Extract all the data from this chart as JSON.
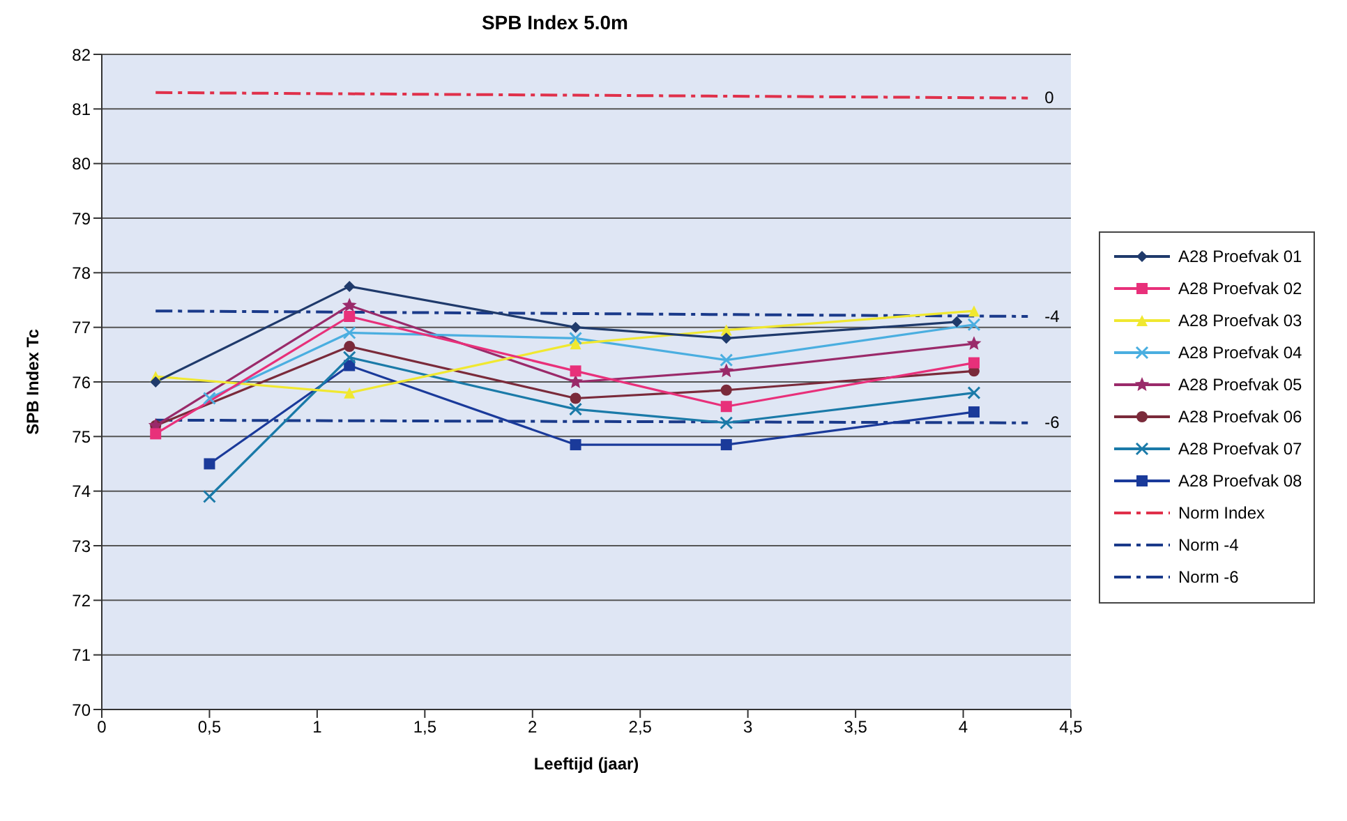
{
  "chart_data": {
    "type": "line",
    "title": "SPB Index 5.0m",
    "xlabel": "Leeftijd (jaar)",
    "ylabel": "SPB Index Tc",
    "xlim": [
      0,
      4.5
    ],
    "xticks": [
      0,
      {
        "value": 0.5,
        "label": "0,5"
      },
      1,
      {
        "value": 1.5,
        "label": "1,5"
      },
      2,
      {
        "value": 2.5,
        "label": "2,5"
      },
      3,
      {
        "value": 3.5,
        "label": "3,5"
      },
      4,
      {
        "value": 4.5,
        "label": "4,5"
      }
    ],
    "ylim": [
      70,
      82
    ],
    "yticks": [
      70,
      71,
      72,
      73,
      74,
      75,
      76,
      77,
      78,
      79,
      80,
      81,
      82
    ],
    "grid": "y",
    "legend": "right",
    "series": [
      {
        "name": "A28 Proefvak 01",
        "color": "#1f3a6b",
        "marker": "diamond",
        "x": [
          0.25,
          1.15,
          2.2,
          2.9,
          3.97
        ],
        "values": [
          76.0,
          77.75,
          77.0,
          76.8,
          77.1
        ]
      },
      {
        "name": "A28 Proefvak 02",
        "color": "#e8307a",
        "marker": "square",
        "x": [
          0.25,
          1.15,
          2.2,
          2.9,
          4.05
        ],
        "values": [
          75.05,
          77.2,
          76.2,
          75.55,
          76.35
        ]
      },
      {
        "name": "A28 Proefvak 03",
        "color": "#f0e830",
        "marker": "triangle",
        "x": [
          0.25,
          1.15,
          2.2,
          2.9,
          4.05
        ],
        "values": [
          76.1,
          75.8,
          76.7,
          76.95,
          77.3
        ]
      },
      {
        "name": "A28 Proefvak 04",
        "color": "#4aaee0",
        "marker": "cross",
        "x": [
          0.5,
          1.15,
          2.2,
          2.9,
          4.05
        ],
        "values": [
          75.7,
          76.9,
          76.8,
          76.4,
          77.05
        ]
      },
      {
        "name": "A28 Proefvak 05",
        "color": "#9a2a6a",
        "marker": "star",
        "x": [
          0.25,
          1.15,
          2.2,
          2.9,
          4.05
        ],
        "values": [
          75.2,
          77.4,
          76.0,
          76.2,
          76.7
        ]
      },
      {
        "name": "A28 Proefvak 06",
        "color": "#7a2a3a",
        "marker": "circle",
        "x": [
          0.25,
          1.15,
          2.2,
          2.9,
          4.05
        ],
        "values": [
          75.2,
          76.65,
          75.7,
          75.85,
          76.2
        ]
      },
      {
        "name": "A28 Proefvak 07",
        "color": "#1a7aa8",
        "marker": "cross",
        "x": [
          0.5,
          1.15,
          2.2,
          2.9,
          4.05
        ],
        "values": [
          73.9,
          76.45,
          75.5,
          75.25,
          75.8
        ]
      },
      {
        "name": "A28 Proefvak 08",
        "color": "#1a3a9a",
        "marker": "square",
        "x": [
          0.5,
          1.15,
          2.2,
          2.9,
          4.05
        ],
        "values": [
          74.5,
          76.3,
          74.85,
          74.85,
          75.45
        ]
      },
      {
        "name": "Norm Index",
        "color": "#e0304a",
        "marker": "none",
        "line_style": "dashed",
        "x": [
          0.25,
          4.3
        ],
        "values": [
          81.3,
          81.2
        ]
      },
      {
        "name": "Norm -4",
        "color": "#1a3a8a",
        "marker": "none",
        "line_style": "dashed",
        "x": [
          0.25,
          4.3
        ],
        "values": [
          77.3,
          77.2
        ]
      },
      {
        "name": "Norm -6",
        "color": "#1a3a8a",
        "marker": "none",
        "line_style": "dashed",
        "x": [
          0.25,
          4.3
        ],
        "values": [
          75.3,
          75.25
        ]
      }
    ],
    "annotations": [
      "0",
      "-4",
      "-6"
    ]
  }
}
